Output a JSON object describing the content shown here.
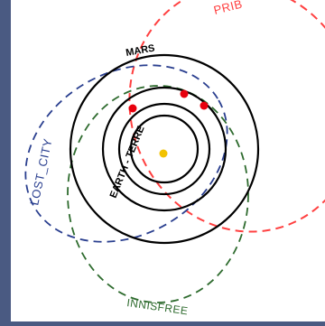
{
  "labels": {
    "mars": "MARS",
    "earth": "EARTH - TERRE",
    "lost_city": "LOST_CITY",
    "innisfree": "INNISFREE",
    "pribram": "PRIB"
  },
  "colors": {
    "background": "#4a5a82",
    "panel": "#ffffff",
    "planet_orbit": "#000000",
    "sun": "#f2c200",
    "impact_point": "#e8000e",
    "pribram_orbit": "#ff4040",
    "lost_city_orbit": "#2a3f8f",
    "innisfree_orbit": "#2e6b2e"
  }
}
